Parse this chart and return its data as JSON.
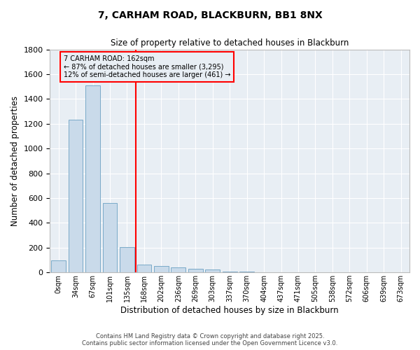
{
  "title": "7, CARHAM ROAD, BLACKBURN, BB1 8NX",
  "subtitle": "Size of property relative to detached houses in Blackburn",
  "xlabel": "Distribution of detached houses by size in Blackburn",
  "ylabel": "Number of detached properties",
  "bar_color": "#c9daea",
  "bar_edge_color": "#7aaac8",
  "background_color": "#e8eef4",
  "axes_background": "#e8eef4",
  "grid_color": "#ffffff",
  "categories": [
    "0sqm",
    "34sqm",
    "67sqm",
    "101sqm",
    "135sqm",
    "168sqm",
    "202sqm",
    "236sqm",
    "269sqm",
    "303sqm",
    "337sqm",
    "370sqm",
    "404sqm",
    "437sqm",
    "471sqm",
    "505sqm",
    "538sqm",
    "572sqm",
    "606sqm",
    "639sqm",
    "673sqm"
  ],
  "values": [
    95,
    1235,
    1510,
    560,
    205,
    65,
    50,
    42,
    28,
    22,
    8,
    4,
    3,
    2,
    2,
    1,
    1,
    1,
    0,
    0,
    0
  ],
  "ylim": [
    0,
    1800
  ],
  "yticks": [
    0,
    200,
    400,
    600,
    800,
    1000,
    1200,
    1400,
    1600,
    1800
  ],
  "vline_pos": 4.5,
  "annotation_line1": "7 CARHAM ROAD: 162sqm",
  "annotation_line2": "← 87% of detached houses are smaller (3,295)",
  "annotation_line3": "12% of semi-detached houses are larger (461) →",
  "footer1": "Contains HM Land Registry data © Crown copyright and database right 2025.",
  "footer2": "Contains public sector information licensed under the Open Government Licence v3.0."
}
